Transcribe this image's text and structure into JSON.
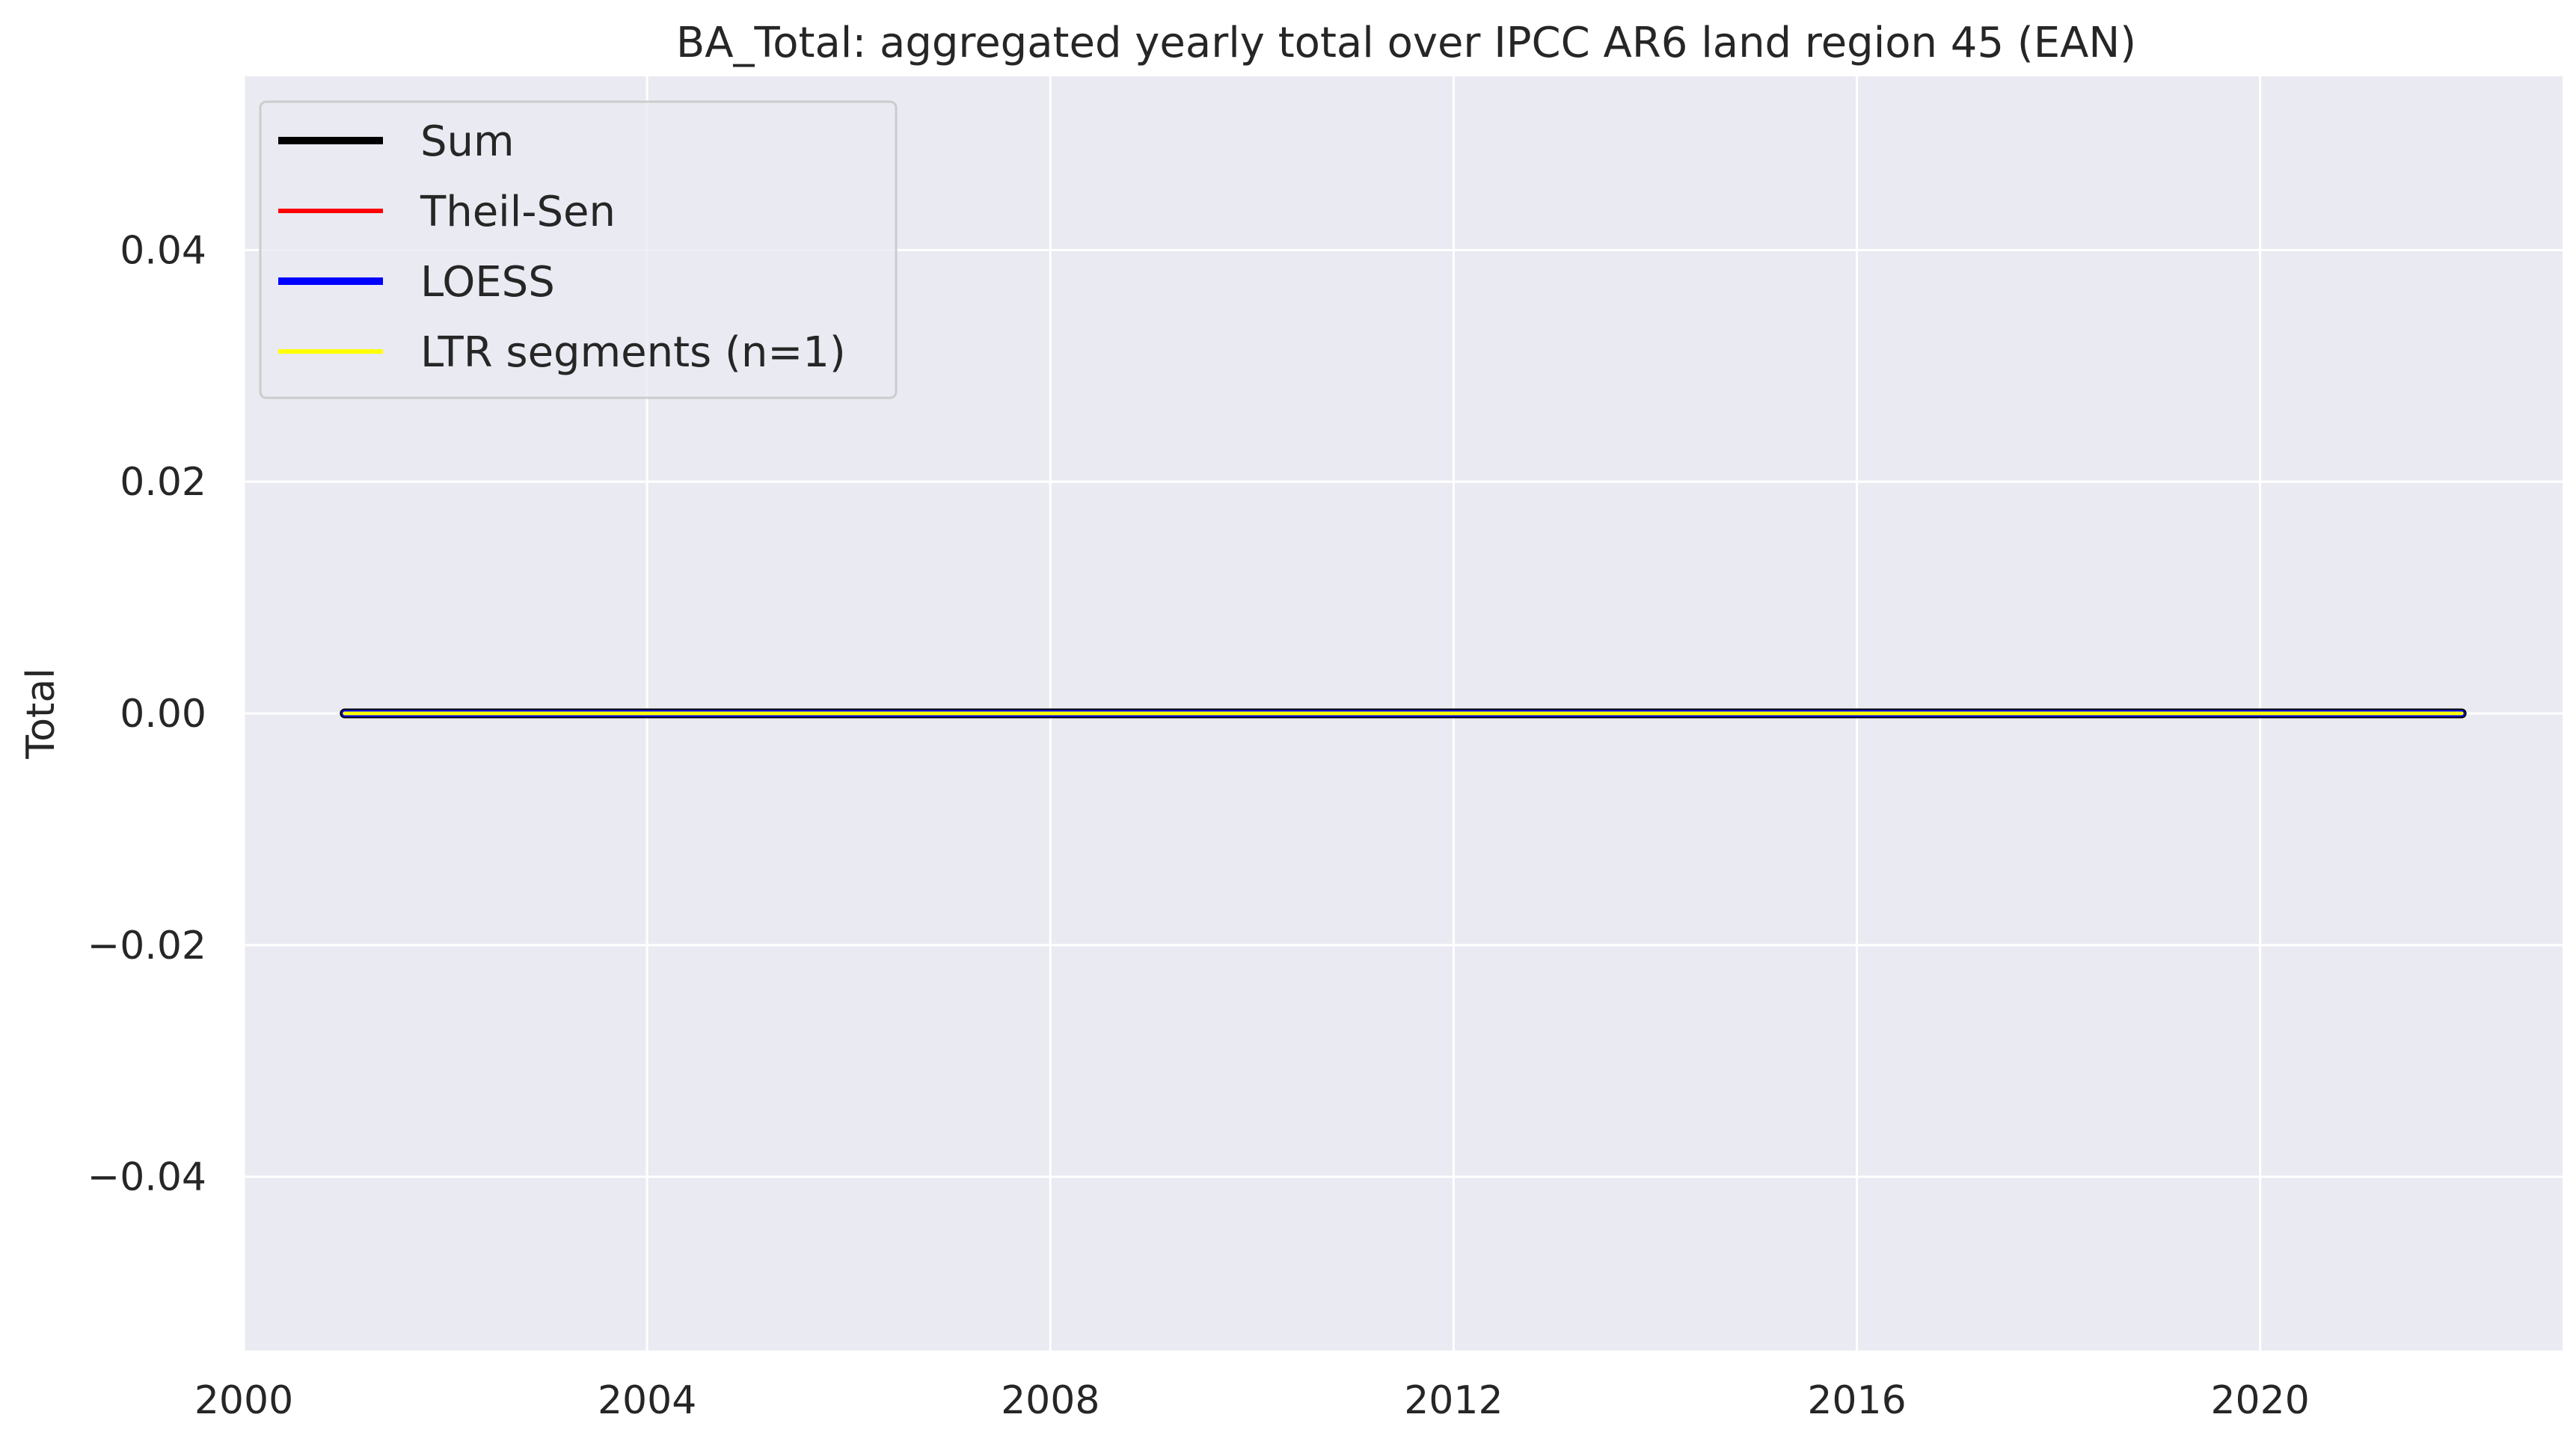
{
  "chart_data": {
    "type": "line",
    "title": "BA_Total: aggregated yearly total over IPCC AR6 land region 45 (EAN)",
    "xlabel": "",
    "ylabel": "Total",
    "xlim": [
      2000,
      2023
    ],
    "ylim": [
      -0.055,
      0.055
    ],
    "x_ticks": [
      2000,
      2004,
      2008,
      2012,
      2016,
      2020
    ],
    "x_tick_labels": [
      "2000",
      "2004",
      "2008",
      "2012",
      "2016",
      "2020"
    ],
    "y_ticks": [
      0.04,
      0.02,
      0.0,
      -0.02,
      -0.04
    ],
    "y_tick_labels": [
      "0.04",
      "0.02",
      "0.00",
      "−0.02",
      "−0.04"
    ],
    "grid": true,
    "background": "#eaeaf2",
    "legend_position": "top-left",
    "series": [
      {
        "name": "Sum",
        "color": "#000000",
        "x": [
          2001,
          2002,
          2003,
          2004,
          2005,
          2006,
          2007,
          2008,
          2009,
          2010,
          2011,
          2012,
          2013,
          2014,
          2015,
          2016,
          2017,
          2018,
          2019,
          2020,
          2021,
          2022
        ],
        "y": [
          0,
          0,
          0,
          0,
          0,
          0,
          0,
          0,
          0,
          0,
          0,
          0,
          0,
          0,
          0,
          0,
          0,
          0,
          0,
          0,
          0,
          0
        ]
      },
      {
        "name": "Theil-Sen",
        "color": "#ff0000",
        "x": [
          2001,
          2022
        ],
        "y": [
          0,
          0
        ]
      },
      {
        "name": "LOESS",
        "color": "#0000ff",
        "x": [
          2001,
          2002,
          2003,
          2004,
          2005,
          2006,
          2007,
          2008,
          2009,
          2010,
          2011,
          2012,
          2013,
          2014,
          2015,
          2016,
          2017,
          2018,
          2019,
          2020,
          2021,
          2022
        ],
        "y": [
          0,
          0,
          0,
          0,
          0,
          0,
          0,
          0,
          0,
          0,
          0,
          0,
          0,
          0,
          0,
          0,
          0,
          0,
          0,
          0,
          0,
          0
        ]
      },
      {
        "name": "LTR segments (n=1)",
        "color": "#ffff00",
        "x": [
          2001,
          2022
        ],
        "y": [
          0,
          0
        ]
      }
    ]
  }
}
